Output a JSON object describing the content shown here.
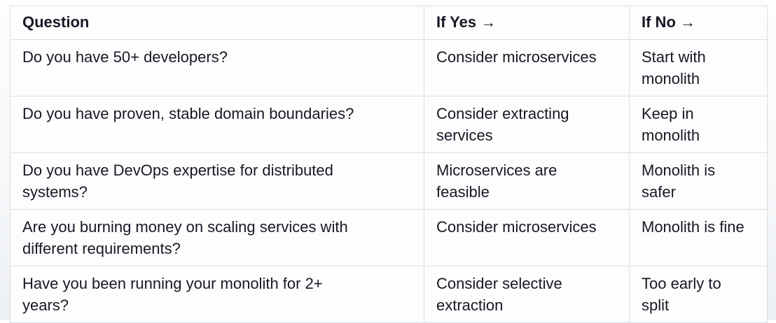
{
  "table": {
    "headers": {
      "question": "Question",
      "if_yes": "If Yes →",
      "if_no": "If No →"
    },
    "rows": [
      {
        "question": "Do you have 50+ developers?",
        "if_yes": "Consider microservices",
        "if_no": "Start with\nmonolith"
      },
      {
        "question": "Do you have proven, stable domain boundaries?",
        "if_yes": "Consider extracting\nservices",
        "if_no": "Keep in\nmonolith"
      },
      {
        "question": "Do you have DevOps expertise for distributed\nsystems?",
        "if_yes": "Microservices are\nfeasible",
        "if_no": "Monolith is\nsafer"
      },
      {
        "question": "Are you burning money on scaling services with\ndifferent requirements?",
        "if_yes": "Consider microservices",
        "if_no": "Monolith is fine"
      },
      {
        "question": "Have you been running your monolith for 2+\nyears?",
        "if_yes": "Consider selective\nextraction",
        "if_no": "Too early to\nsplit"
      }
    ],
    "colors": {
      "text": "#171824",
      "border": "#d9dee4",
      "cell_background": "#fdfdfe",
      "page_background_top": "#fcfdfe",
      "page_background_bottom": "#edf0f3"
    }
  }
}
